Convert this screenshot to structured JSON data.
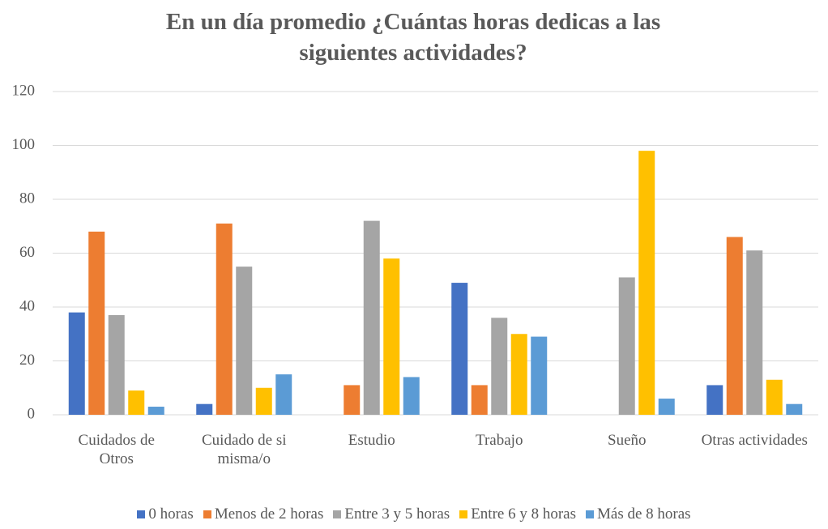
{
  "chart_data": {
    "type": "bar",
    "title": "En un día promedio  ¿Cuántas horas dedicas a las siguientes actividades?",
    "categories": [
      "Cuidados de Otros",
      "Cuidado de si misma/o",
      "Estudio",
      "Trabajo",
      "Sueño",
      "Otras actividades"
    ],
    "series": [
      {
        "name": "0 horas",
        "color": "#4472c4",
        "values": [
          38,
          4,
          0,
          49,
          0,
          11
        ]
      },
      {
        "name": "Menos de 2 horas",
        "color": "#ed7d31",
        "values": [
          68,
          71,
          11,
          11,
          0,
          66
        ]
      },
      {
        "name": "Entre 3  y 5 horas",
        "color": "#a5a5a5",
        "values": [
          37,
          55,
          72,
          36,
          51,
          61
        ]
      },
      {
        "name": "Entre 6 y 8 horas",
        "color": "#ffc000",
        "values": [
          9,
          10,
          58,
          30,
          98,
          13
        ]
      },
      {
        "name": "Más de 8 horas",
        "color": "#5b9bd5",
        "values": [
          3,
          15,
          14,
          29,
          6,
          4
        ]
      }
    ],
    "ylim": [
      0,
      120
    ],
    "yticks": [
      0,
      20,
      40,
      60,
      80,
      100,
      120
    ],
    "grid": true,
    "legend": "bottom"
  }
}
